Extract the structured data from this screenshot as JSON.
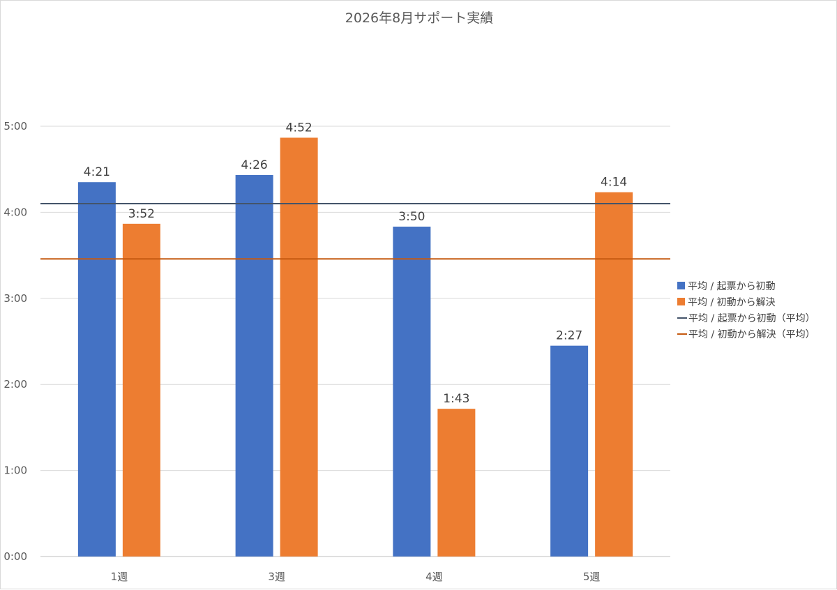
{
  "chart_data": {
    "type": "bar",
    "title": "2026年8月サポート実績",
    "categories": [
      "1週",
      "3週",
      "4週",
      "5週"
    ],
    "y_unit": "minutes",
    "ylim": [
      0,
      300
    ],
    "yticks": [
      {
        "value": 0,
        "label": "0:00"
      },
      {
        "value": 60,
        "label": "1:00"
      },
      {
        "value": 120,
        "label": "2:00"
      },
      {
        "value": 180,
        "label": "3:00"
      },
      {
        "value": 240,
        "label": "4:00"
      },
      {
        "value": 300,
        "label": "5:00"
      }
    ],
    "series": [
      {
        "name": "平均 / 起票から初動",
        "color": "#4472c4",
        "values": [
          261,
          266,
          230,
          147
        ],
        "labels": [
          "4:21",
          "4:26",
          "3:50",
          "2:27"
        ]
      },
      {
        "name": "平均 / 初動から解決",
        "color": "#ed7d31",
        "values": [
          232,
          292,
          103,
          254
        ],
        "labels": [
          "3:52",
          "4:52",
          "1:43",
          "4:14"
        ]
      }
    ],
    "reference_lines": [
      {
        "name": "平均 / 起票から初動（平均）",
        "color": "#44546a",
        "value": 246
      },
      {
        "name": "平均 / 初動から解決（平均）",
        "color": "#c55a11",
        "value": 207.5
      }
    ],
    "grid": true,
    "legend_position": "right"
  }
}
